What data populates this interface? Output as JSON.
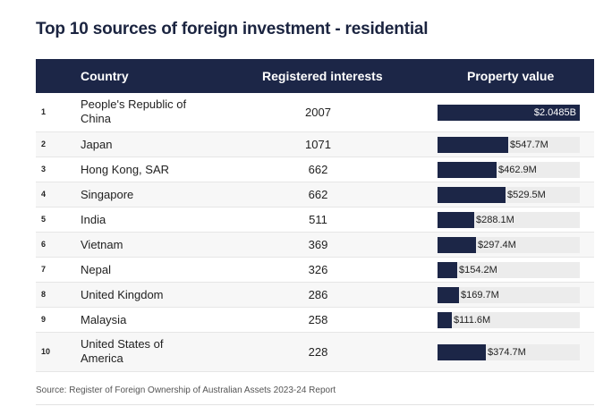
{
  "title": "Top 10 sources of foreign investment - residential",
  "headers": {
    "country": "Country",
    "registered": "Registered interests",
    "value": "Property value"
  },
  "source": "Source: Register of Foreign Ownership of Australian Assets 2023-24 Report",
  "chart_data": {
    "type": "table",
    "title": "Top 10 sources of foreign investment - residential",
    "columns": [
      "Country",
      "Registered interests",
      "Property value"
    ],
    "value_unit": "AUD millions",
    "rows": [
      {
        "rank": "1",
        "country": "People's Republic of China",
        "registered": "2007",
        "value_m": 2048.5,
        "value_label": "$2.0485B"
      },
      {
        "rank": "2",
        "country": "Japan",
        "registered": "1071",
        "value_m": 547.7,
        "value_label": "$547.7M"
      },
      {
        "rank": "3",
        "country": "Hong Kong, SAR",
        "registered": "662",
        "value_m": 462.9,
        "value_label": "$462.9M"
      },
      {
        "rank": "4",
        "country": "Singapore",
        "registered": "662",
        "value_m": 529.5,
        "value_label": "$529.5M"
      },
      {
        "rank": "5",
        "country": "India",
        "registered": "511",
        "value_m": 288.1,
        "value_label": "$288.1M"
      },
      {
        "rank": "6",
        "country": "Vietnam",
        "registered": "369",
        "value_m": 297.4,
        "value_label": "$297.4M"
      },
      {
        "rank": "7",
        "country": "Nepal",
        "registered": "326",
        "value_m": 154.2,
        "value_label": "$154.2M"
      },
      {
        "rank": "8",
        "country": "United Kingdom",
        "registered": "286",
        "value_m": 169.7,
        "value_label": "$169.7M"
      },
      {
        "rank": "9",
        "country": "Malaysia",
        "registered": "258",
        "value_m": 111.6,
        "value_label": "$111.6M"
      },
      {
        "rank": "10",
        "country": "United States of America",
        "registered": "228",
        "value_m": 374.7,
        "value_label": "$374.7M"
      }
    ]
  }
}
